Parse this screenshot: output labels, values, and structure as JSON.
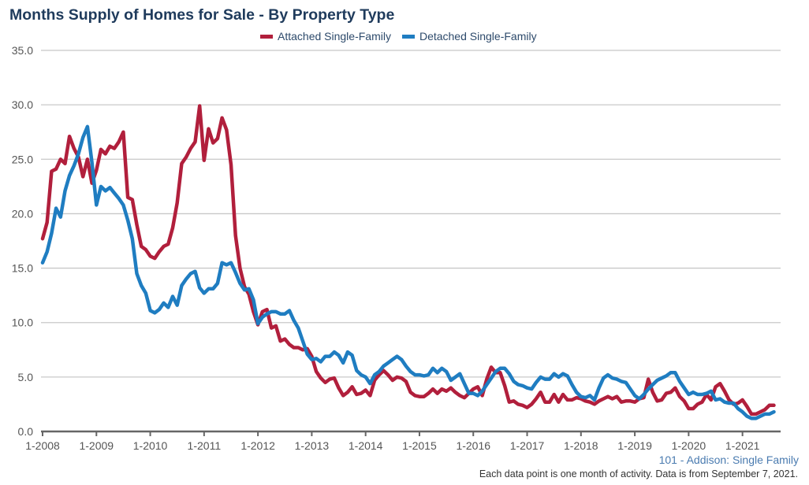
{
  "chart_data": {
    "type": "line",
    "title": "Months Supply of Homes for Sale - By Property Type",
    "frequency": "monthly",
    "x_range": [
      "1-2008",
      "8-2021"
    ],
    "x_tick_labels": [
      "1-2008",
      "1-2009",
      "1-2010",
      "1-2011",
      "1-2012",
      "1-2013",
      "1-2014",
      "1-2015",
      "1-2016",
      "1-2017",
      "1-2018",
      "1-2019",
      "1-2020",
      "1-2021"
    ],
    "y_tick_labels": [
      "0.0",
      "5.0",
      "10.0",
      "15.0",
      "20.0",
      "25.0",
      "30.0",
      "35.0"
    ],
    "ylim": [
      0,
      35
    ],
    "grid": true,
    "legend_placement": "top",
    "series": [
      {
        "name": "Attached Single-Family",
        "color": "#b11f3c",
        "values": [
          17.7,
          19.2,
          23.9,
          24.1,
          25.0,
          24.6,
          27.1,
          26.0,
          25.2,
          23.4,
          25.0,
          22.8,
          24.0,
          25.9,
          25.5,
          26.2,
          26.0,
          26.6,
          27.5,
          21.5,
          21.3,
          19.0,
          17.0,
          16.7,
          16.1,
          15.9,
          16.5,
          17.0,
          17.2,
          18.7,
          21.0,
          24.6,
          25.2,
          26.0,
          26.6,
          29.9,
          24.9,
          27.8,
          26.5,
          26.9,
          28.8,
          27.7,
          24.5,
          18.0,
          15.0,
          13.3,
          12.6,
          11.0,
          9.8,
          11.0,
          11.2,
          9.5,
          9.7,
          8.3,
          8.5,
          8.0,
          7.7,
          7.7,
          7.5,
          7.6,
          6.9,
          5.5,
          4.9,
          4.5,
          4.8,
          4.9,
          4.0,
          3.3,
          3.6,
          4.1,
          3.4,
          3.5,
          3.8,
          3.3,
          4.7,
          5.2,
          5.6,
          5.2,
          4.7,
          5.0,
          4.9,
          4.6,
          3.6,
          3.3,
          3.2,
          3.2,
          3.5,
          3.9,
          3.5,
          3.9,
          3.7,
          4.0,
          3.6,
          3.3,
          3.1,
          3.5,
          3.9,
          4.1,
          3.3,
          4.8,
          5.9,
          5.4,
          5.4,
          4.2,
          2.7,
          2.8,
          2.5,
          2.4,
          2.2,
          2.5,
          3.0,
          3.6,
          2.7,
          2.7,
          3.4,
          2.7,
          3.4,
          2.9,
          2.9,
          3.1,
          3.0,
          2.8,
          2.7,
          2.5,
          2.8,
          3.0,
          3.2,
          3.0,
          3.2,
          2.7,
          2.8,
          2.8,
          2.7,
          3.0,
          3.1,
          4.8,
          3.6,
          2.8,
          2.9,
          3.5,
          3.6,
          4.0,
          3.2,
          2.8,
          2.1,
          2.1,
          2.5,
          2.7,
          3.4,
          2.9,
          4.1,
          4.4,
          3.7,
          2.9,
          2.5,
          2.6,
          2.9,
          2.3,
          1.6,
          1.6,
          1.8,
          2.0,
          2.4,
          2.4
        ]
      },
      {
        "name": "Detached Single-Family",
        "color": "#1f7dc1",
        "values": [
          15.5,
          16.5,
          18.2,
          20.5,
          19.7,
          22.1,
          23.5,
          24.4,
          25.5,
          27.0,
          28.0,
          24.7,
          20.8,
          22.5,
          22.1,
          22.4,
          21.9,
          21.4,
          20.8,
          19.4,
          17.7,
          14.5,
          13.4,
          12.7,
          11.1,
          10.9,
          11.2,
          11.8,
          11.4,
          12.4,
          11.6,
          13.4,
          14.0,
          14.5,
          14.7,
          13.2,
          12.7,
          13.1,
          13.1,
          13.6,
          15.5,
          15.3,
          15.5,
          14.6,
          13.6,
          13.0,
          13.1,
          12.1,
          9.9,
          10.5,
          10.8,
          11.0,
          11.0,
          10.8,
          10.8,
          11.1,
          10.2,
          9.5,
          8.3,
          7.1,
          6.6,
          6.7,
          6.4,
          6.9,
          6.9,
          7.3,
          7.0,
          6.3,
          7.3,
          7.0,
          5.6,
          5.2,
          5.0,
          4.4,
          5.2,
          5.5,
          6.0,
          6.3,
          6.6,
          6.9,
          6.6,
          6.0,
          5.5,
          5.2,
          5.2,
          5.1,
          5.2,
          5.8,
          5.4,
          5.8,
          5.5,
          4.7,
          5.0,
          5.3,
          4.4,
          3.5,
          3.5,
          3.3,
          3.7,
          4.3,
          4.9,
          5.5,
          5.8,
          5.8,
          5.3,
          4.6,
          4.3,
          4.2,
          4.0,
          3.9,
          4.5,
          5.0,
          4.8,
          4.8,
          5.3,
          5.0,
          5.3,
          5.1,
          4.3,
          3.6,
          3.2,
          3.1,
          3.3,
          2.9,
          4.0,
          4.9,
          5.2,
          4.9,
          4.8,
          4.6,
          4.5,
          3.9,
          3.3,
          3.0,
          3.4,
          3.9,
          4.3,
          4.7,
          4.9,
          5.1,
          5.4,
          5.4,
          4.6,
          4.0,
          3.4,
          3.6,
          3.4,
          3.4,
          3.5,
          3.7,
          2.9,
          3.0,
          2.7,
          2.6,
          2.6,
          2.1,
          1.8,
          1.4,
          1.2,
          1.2,
          1.4,
          1.6,
          1.6,
          1.8
        ]
      }
    ]
  },
  "footer": {
    "source": "101 - Addison: Single Family",
    "note": "Each data point is one month of activity. Data is from September 7, 2021."
  }
}
